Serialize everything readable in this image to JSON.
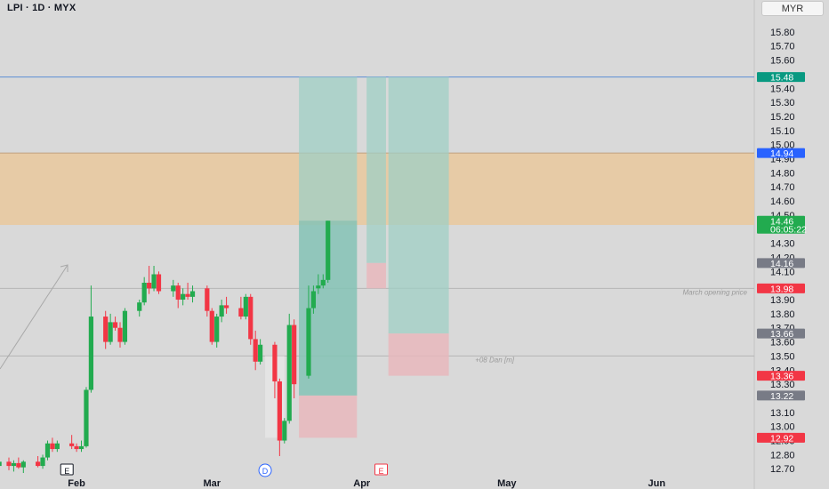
{
  "header": {
    "title": "LPI · 1D · MYX",
    "currency": "MYR"
  },
  "chart_data": {
    "type": "candlestick",
    "ylim": [
      12.67,
      15.9
    ],
    "y_ticks": [
      "15.80",
      "15.70",
      "15.60",
      "15.40",
      "15.30",
      "15.20",
      "15.10",
      "15.00",
      "14.90",
      "14.80",
      "14.70",
      "14.60",
      "14.50",
      "14.30",
      "14.20",
      "14.10",
      "13.90",
      "13.80",
      "13.70",
      "13.60",
      "13.50",
      "13.40",
      "13.30",
      "13.10",
      "13.00",
      "12.90",
      "12.80",
      "12.70"
    ],
    "x_labels": [
      {
        "label": "Feb",
        "day": 14
      },
      {
        "label": "Mar",
        "day": 42
      },
      {
        "label": "Apr",
        "day": 73
      },
      {
        "label": "May",
        "day": 103
      },
      {
        "label": "Jun",
        "day": 134
      }
    ],
    "candles": [
      {
        "d": -2,
        "o": 12.72,
        "h": 12.77,
        "l": 12.66,
        "c": 12.75
      },
      {
        "d": 0,
        "o": 12.75,
        "h": 12.78,
        "l": 12.69,
        "c": 12.72
      },
      {
        "d": 1,
        "o": 12.72,
        "h": 12.76,
        "l": 12.68,
        "c": 12.74
      },
      {
        "d": 2,
        "o": 12.74,
        "h": 12.78,
        "l": 12.7,
        "c": 12.71
      },
      {
        "d": 3,
        "o": 12.71,
        "h": 12.76,
        "l": 12.67,
        "c": 12.75
      },
      {
        "d": 6,
        "o": 12.75,
        "h": 12.79,
        "l": 12.71,
        "c": 12.72
      },
      {
        "d": 7,
        "o": 12.72,
        "h": 12.8,
        "l": 12.7,
        "c": 12.78
      },
      {
        "d": 8,
        "o": 12.78,
        "h": 12.9,
        "l": 12.76,
        "c": 12.88
      },
      {
        "d": 9,
        "o": 12.88,
        "h": 12.92,
        "l": 12.82,
        "c": 12.84
      },
      {
        "d": 10,
        "o": 12.84,
        "h": 12.9,
        "l": 12.82,
        "c": 12.88
      },
      {
        "d": 13,
        "o": 12.88,
        "h": 12.94,
        "l": 12.84,
        "c": 12.86
      },
      {
        "d": 14,
        "o": 12.86,
        "h": 12.88,
        "l": 12.82,
        "c": 12.84
      },
      {
        "d": 15,
        "o": 12.84,
        "h": 12.9,
        "l": 12.82,
        "c": 12.86
      },
      {
        "d": 16,
        "o": 12.86,
        "h": 13.28,
        "l": 12.85,
        "c": 13.26
      },
      {
        "d": 17,
        "o": 13.26,
        "h": 14.0,
        "l": 13.24,
        "c": 13.78
      },
      {
        "d": 20,
        "o": 13.78,
        "h": 13.82,
        "l": 13.55,
        "c": 13.6
      },
      {
        "d": 21,
        "o": 13.6,
        "h": 13.8,
        "l": 13.58,
        "c": 13.74
      },
      {
        "d": 22,
        "o": 13.74,
        "h": 13.78,
        "l": 13.68,
        "c": 13.7
      },
      {
        "d": 23,
        "o": 13.7,
        "h": 13.74,
        "l": 13.56,
        "c": 13.6
      },
      {
        "d": 24,
        "o": 13.6,
        "h": 13.84,
        "l": 13.58,
        "c": 13.82
      },
      {
        "d": 27,
        "o": 13.82,
        "h": 13.9,
        "l": 13.78,
        "c": 13.88
      },
      {
        "d": 28,
        "o": 13.88,
        "h": 14.06,
        "l": 13.86,
        "c": 14.02
      },
      {
        "d": 29,
        "o": 14.02,
        "h": 14.14,
        "l": 13.94,
        "c": 13.98
      },
      {
        "d": 30,
        "o": 13.98,
        "h": 14.14,
        "l": 13.96,
        "c": 14.08
      },
      {
        "d": 31,
        "o": 14.08,
        "h": 14.1,
        "l": 13.94,
        "c": 13.96
      },
      {
        "d": 34,
        "o": 13.96,
        "h": 14.04,
        "l": 13.92,
        "c": 14.0
      },
      {
        "d": 35,
        "o": 14.0,
        "h": 14.02,
        "l": 13.84,
        "c": 13.9
      },
      {
        "d": 36,
        "o": 13.9,
        "h": 13.98,
        "l": 13.86,
        "c": 13.94
      },
      {
        "d": 37,
        "o": 13.94,
        "h": 14.02,
        "l": 13.9,
        "c": 13.92
      },
      {
        "d": 38,
        "o": 13.92,
        "h": 14.0,
        "l": 13.88,
        "c": 13.96
      },
      {
        "d": 41,
        "o": 13.98,
        "h": 14.0,
        "l": 13.78,
        "c": 13.82
      },
      {
        "d": 42,
        "o": 13.82,
        "h": 13.84,
        "l": 13.58,
        "c": 13.6
      },
      {
        "d": 43,
        "o": 13.6,
        "h": 13.8,
        "l": 13.56,
        "c": 13.78
      },
      {
        "d": 44,
        "o": 13.78,
        "h": 13.9,
        "l": 13.74,
        "c": 13.86
      },
      {
        "d": 45,
        "o": 13.86,
        "h": 13.92,
        "l": 13.8,
        "c": 13.84
      },
      {
        "d": 48,
        "o": 13.84,
        "h": 13.92,
        "l": 13.76,
        "c": 13.78
      },
      {
        "d": 49,
        "o": 13.78,
        "h": 13.94,
        "l": 13.76,
        "c": 13.92
      },
      {
        "d": 50,
        "o": 13.92,
        "h": 13.94,
        "l": 13.58,
        "c": 13.62
      },
      {
        "d": 51,
        "o": 13.62,
        "h": 13.68,
        "l": 13.4,
        "c": 13.46
      },
      {
        "d": 52,
        "o": 13.46,
        "h": 13.62,
        "l": 13.44,
        "c": 13.58
      },
      {
        "d": 55,
        "o": 13.58,
        "h": 13.6,
        "l": 13.2,
        "c": 13.32
      },
      {
        "d": 56,
        "o": 13.32,
        "h": 13.34,
        "l": 12.79,
        "c": 12.9
      },
      {
        "d": 57,
        "o": 12.9,
        "h": 13.06,
        "l": 12.88,
        "c": 13.04
      },
      {
        "d": 58,
        "o": 13.04,
        "h": 13.8,
        "l": 13.02,
        "c": 13.72
      },
      {
        "d": 59,
        "o": 13.72,
        "h": 13.76,
        "l": 13.2,
        "c": 13.3
      },
      {
        "d": 62,
        "o": 13.36,
        "h": 14.0,
        "l": 13.34,
        "c": 13.84
      },
      {
        "d": 63,
        "o": 13.84,
        "h": 14.0,
        "l": 13.8,
        "c": 13.96
      },
      {
        "d": 64,
        "o": 13.98,
        "h": 14.08,
        "l": 13.94,
        "c": 14.0
      },
      {
        "d": 65,
        "o": 14.0,
        "h": 14.08,
        "l": 13.98,
        "c": 14.04
      },
      {
        "d": 66,
        "o": 14.04,
        "h": 14.46,
        "l": 14.02,
        "c": 14.46
      }
    ],
    "horizontal_lines": [
      {
        "y": 15.48,
        "color": "#5b8fd6"
      },
      {
        "y": 14.94,
        "color": "#c0a080"
      },
      {
        "y": 13.98,
        "color": "#b5b5b5",
        "label": "March opening price"
      },
      {
        "y": 13.5,
        "color": "#b5b5b5",
        "label": "+08 Dan [m]"
      }
    ],
    "zones": [
      {
        "y1": 14.94,
        "y2": 14.43,
        "fill": "#e8c9a0"
      }
    ],
    "positions": [
      {
        "d1": 60,
        "d2": 72,
        "entry": 13.22,
        "target": 15.48,
        "stop": 12.92
      },
      {
        "d1": 74,
        "d2": 78,
        "entry": 14.16,
        "target": 15.48,
        "stop": 13.98
      },
      {
        "d1": 78.5,
        "d2": 91,
        "entry": 13.66,
        "target": 15.48,
        "stop": 13.36
      }
    ],
    "consolidation_box": {
      "d1": 53,
      "d2": 57,
      "y1": 13.5,
      "y2": 12.92
    },
    "price_tags": [
      {
        "value": 15.48,
        "text": "15.48",
        "color": "#089981"
      },
      {
        "value": 14.94,
        "text": "14.94",
        "color": "#2962ff"
      },
      {
        "value": 14.46,
        "text": "14.46",
        "sub": "06:05:22",
        "color": "#22ab4f"
      },
      {
        "value": 14.16,
        "text": "14.16",
        "color": "#787b86"
      },
      {
        "value": 13.98,
        "text": "13.98",
        "color": "#f23645"
      },
      {
        "value": 13.66,
        "text": "13.66",
        "color": "#787b86"
      },
      {
        "value": 13.36,
        "text": "13.36",
        "color": "#f23645"
      },
      {
        "value": 13.22,
        "text": "13.22",
        "color": "#787b86"
      },
      {
        "value": 12.92,
        "text": "12.92",
        "color": "#f23645"
      }
    ],
    "event_markers": [
      {
        "day": 12,
        "label": "E",
        "color": "#131722"
      },
      {
        "day": 53,
        "label": "D",
        "color": "#2962ff"
      },
      {
        "day": 77,
        "label": "E",
        "color": "#f23645"
      }
    ],
    "colors": {
      "up": "#22ab4f",
      "down": "#f23645",
      "target_fill": "#9fcfc4",
      "stop_fill": "#e8b7bc"
    }
  }
}
